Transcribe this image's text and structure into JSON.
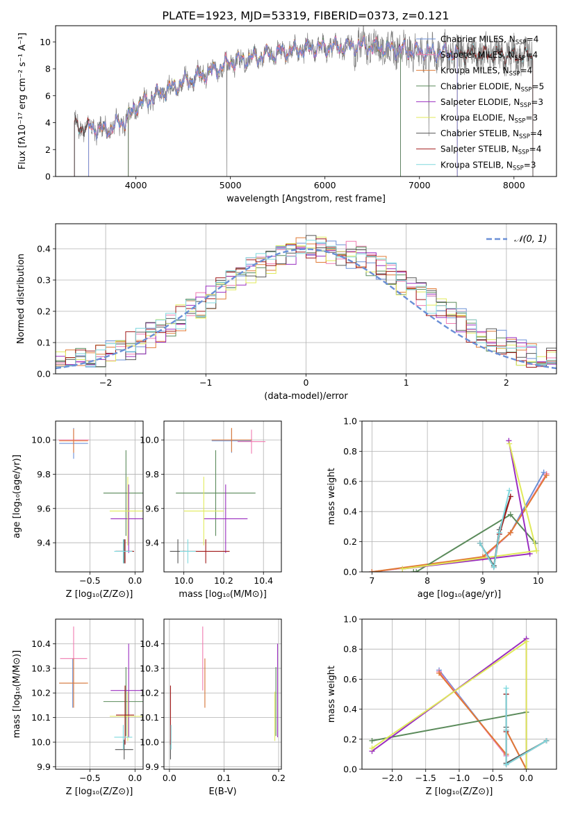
{
  "figure": {
    "title": "PLATE=1923, MJD=53319, FIBERID=0373, z=0.121"
  },
  "colors": {
    "ChabMILES": "#6a8fd6",
    "SalpMILES": "#f07ab0",
    "KroupaMILES": "#e07a35",
    "ChabELODIE": "#5a8a5a",
    "SalpELODIE": "#9a2ec0",
    "KroupaELODIE": "#e0ea5a",
    "ChabSTELIB": "#555555",
    "SalpSTELIB": "#a01818",
    "KroupaSTELIB": "#7ed8de",
    "data": "#808080"
  },
  "legend_spectrum": [
    {
      "key": "ChabMILES",
      "label": "Chabrier MILES, N",
      "sub": "SSP",
      "tail": "=4"
    },
    {
      "key": "SalpMILES",
      "label": "Salpeter MILES, N",
      "sub": "SSP",
      "tail": "=4"
    },
    {
      "key": "KroupaMILES",
      "label": "Kroupa MILES, N",
      "sub": "SSP",
      "tail": "=4"
    },
    {
      "key": "ChabELODIE",
      "label": "Chabrier ELODIE, N",
      "sub": "SSP",
      "tail": "=5"
    },
    {
      "key": "SalpELODIE",
      "label": "Salpeter ELODIE, N",
      "sub": "SSP",
      "tail": "=3"
    },
    {
      "key": "KroupaELODIE",
      "label": "Kroupa ELODIE, N",
      "sub": "SSP",
      "tail": "=3"
    },
    {
      "key": "ChabSTELIB",
      "label": "Chabrier STELIB, N",
      "sub": "SSP",
      "tail": "=4"
    },
    {
      "key": "SalpSTELIB",
      "label": "Salpeter STELIB, N",
      "sub": "SSP",
      "tail": "=4"
    },
    {
      "key": "KroupaSTELIB",
      "label": "Kroupa STELIB, N",
      "sub": "SSP",
      "tail": "=3"
    }
  ],
  "chart_data": [
    {
      "id": "spectrum",
      "type": "line",
      "xlabel": "wavelength [Angstrom, rest frame]",
      "ylabel": "Flux [fλ10⁻¹⁷ erg cm⁻² s⁻¹ A⁻¹]",
      "xlim": [
        3150,
        8450
      ],
      "ylim": [
        0,
        11.2
      ],
      "xticks": [
        4000,
        5000,
        6000,
        7000,
        8000
      ],
      "yticks": [
        0,
        2,
        4,
        6,
        8,
        10
      ],
      "continuum": [
        [
          3350,
          3.8
        ],
        [
          3500,
          3.6
        ],
        [
          3700,
          3.5
        ],
        [
          3900,
          4.2
        ],
        [
          4000,
          5.2
        ],
        [
          4200,
          6.0
        ],
        [
          4500,
          7.0
        ],
        [
          4800,
          7.8
        ],
        [
          5000,
          8.5
        ],
        [
          5300,
          8.9
        ],
        [
          5600,
          9.3
        ],
        [
          6000,
          9.6
        ],
        [
          6400,
          9.7
        ],
        [
          6800,
          9.4
        ],
        [
          7200,
          9.2
        ],
        [
          7600,
          9.1
        ],
        [
          8000,
          9.0
        ],
        [
          8200,
          8.9
        ]
      ],
      "model_extent": {
        "ChabMILES": [
          3500,
          7400
        ],
        "SalpMILES": [
          3500,
          7400
        ],
        "KroupaMILES": [
          3500,
          7400
        ],
        "ChabELODIE": [
          3920,
          6800
        ],
        "SalpELODIE": [
          3920,
          6800
        ],
        "KroupaELODIE": [
          3920,
          6800
        ],
        "ChabSTELIB": [
          3350,
          8200
        ],
        "SalpSTELIB": [
          3350,
          8200
        ],
        "KroupaSTELIB": [
          3350,
          8200
        ]
      }
    },
    {
      "id": "residuals",
      "type": "step",
      "xlabel": "(data-model)/error",
      "ylabel": "Normed distribution",
      "xlim": [
        -2.5,
        2.5
      ],
      "ylim": [
        0,
        0.48
      ],
      "xticks": [
        -2,
        -1,
        0,
        1,
        2
      ],
      "yticks": [
        0.0,
        0.1,
        0.2,
        0.3,
        0.4
      ],
      "legend": "𝒩(0, 1)",
      "gaussian": {
        "mean": 0,
        "sigma": 1
      }
    },
    {
      "id": "age_vs_Z",
      "type": "errorbar",
      "xlabel": "Z [log₁₀(Z/Z⊙)]",
      "ylabel": "age  [log₁₀(age/yr)]",
      "xlim": [
        -0.88,
        0.09
      ],
      "ylim": [
        9.23,
        10.11
      ],
      "xticks": [
        -0.5,
        0.0
      ],
      "yticks": [
        9.4,
        9.6,
        9.8,
        10.0
      ],
      "points": [
        {
          "key": "ChabMILES",
          "x": -0.68,
          "xerr": 0.16,
          "y": 9.98,
          "yerr": 0.09
        },
        {
          "key": "SalpMILES",
          "x": -0.68,
          "xerr": 0.17,
          "y": 10.0,
          "yerr": 0.06
        },
        {
          "key": "KroupaMILES",
          "x": -0.68,
          "xerr": 0.16,
          "y": 9.995,
          "yerr": 0.07
        },
        {
          "key": "ChabELODIE",
          "x": -0.1,
          "xerr": 0.25,
          "y": 9.69,
          "yerr": 0.25
        },
        {
          "key": "SalpELODIE",
          "x": -0.07,
          "xerr": 0.2,
          "y": 9.54,
          "yerr": 0.2
        },
        {
          "key": "KroupaELODIE",
          "x": -0.08,
          "xerr": 0.2,
          "y": 9.585,
          "yerr": 0.2
        },
        {
          "key": "ChabSTELIB",
          "x": -0.12,
          "xerr": 0.1,
          "y": 9.35,
          "yerr": 0.07
        },
        {
          "key": "SalpSTELIB",
          "x": -0.11,
          "xerr": 0.1,
          "y": 9.35,
          "yerr": 0.07
        },
        {
          "key": "KroupaSTELIB",
          "x": -0.13,
          "xerr": 0.1,
          "y": 9.35,
          "yerr": 0.07
        }
      ]
    },
    {
      "id": "age_vs_mass",
      "type": "errorbar",
      "xlabel": "mass [log₁₀(M/M⊙)]",
      "ylabel": "",
      "xlim": [
        9.9,
        10.49
      ],
      "ylim": [
        9.23,
        10.11
      ],
      "xticks": [
        10.0,
        10.2,
        10.4
      ],
      "yticks": [
        9.4,
        9.6,
        9.8,
        10.0
      ],
      "points": [
        {
          "key": "ChabMILES",
          "x": 10.24,
          "xerr": 0.1,
          "y": 9.995,
          "yerr": 0.07
        },
        {
          "key": "SalpMILES",
          "x": 10.34,
          "xerr": 0.07,
          "y": 9.99,
          "yerr": 0.07
        },
        {
          "key": "KroupaMILES",
          "x": 10.24,
          "xerr": 0.1,
          "y": 10.0,
          "yerr": 0.07
        },
        {
          "key": "ChabELODIE",
          "x": 10.16,
          "xerr": 0.2,
          "y": 9.69,
          "yerr": 0.25
        },
        {
          "key": "SalpELODIE",
          "x": 10.21,
          "xerr": 0.11,
          "y": 9.54,
          "yerr": 0.2
        },
        {
          "key": "KroupaELODIE",
          "x": 10.1,
          "xerr": 0.1,
          "y": 9.585,
          "yerr": 0.2
        },
        {
          "key": "ChabSTELIB",
          "x": 9.97,
          "xerr": 0.04,
          "y": 9.35,
          "yerr": 0.07
        },
        {
          "key": "SalpSTELIB",
          "x": 10.11,
          "xerr": 0.12,
          "y": 9.35,
          "yerr": 0.07
        },
        {
          "key": "KroupaSTELIB",
          "x": 10.02,
          "xerr": 0.04,
          "y": 9.35,
          "yerr": 0.07
        }
      ]
    },
    {
      "id": "weight_vs_age",
      "type": "line",
      "xlabel": "age  [log₁₀(age/yr)]",
      "ylabel": "mass weight",
      "xlim": [
        6.82,
        10.33
      ],
      "ylim": [
        0,
        1.0
      ],
      "xticks": [
        7,
        8,
        9,
        10
      ],
      "yticks": [
        0.0,
        0.2,
        0.4,
        0.6,
        0.8,
        1.0
      ],
      "series": [
        {
          "key": "ChabMILES",
          "x": [
            10.1,
            9.5,
            9.0,
            7.0
          ],
          "y": [
            0.66,
            0.26,
            0.09,
            0.0
          ]
        },
        {
          "key": "SalpMILES",
          "x": [
            10.15,
            9.5,
            9.0,
            7.0
          ],
          "y": [
            0.65,
            0.26,
            0.09,
            0.0
          ]
        },
        {
          "key": "KroupaMILES",
          "x": [
            10.15,
            9.5,
            9.0,
            7.0
          ],
          "y": [
            0.64,
            0.26,
            0.1,
            0.0
          ]
        },
        {
          "key": "ChabELODIE",
          "x": [
            9.95,
            9.5,
            7.8,
            7.75,
            7.75
          ],
          "y": [
            0.19,
            0.38,
            0.0,
            0.0,
            0.0
          ]
        },
        {
          "key": "SalpELODIE",
          "x": [
            9.47,
            9.85,
            7.55
          ],
          "y": [
            0.87,
            0.12,
            0.02
          ]
        },
        {
          "key": "KroupaELODIE",
          "x": [
            9.48,
            9.97,
            7.55
          ],
          "y": [
            0.85,
            0.14,
            0.02
          ]
        },
        {
          "key": "ChabSTELIB",
          "x": [
            9.5,
            9.3,
            9.2,
            8.95
          ],
          "y": [
            0.5,
            0.28,
            0.04,
            0.19
          ]
        },
        {
          "key": "SalpSTELIB",
          "x": [
            9.5,
            9.3,
            9.2,
            8.95
          ],
          "y": [
            0.5,
            0.25,
            0.03,
            0.19
          ]
        },
        {
          "key": "KroupaSTELIB",
          "x": [
            9.48,
            9.3,
            9.2,
            8.95
          ],
          "y": [
            0.54,
            0.26,
            0.03,
            0.19
          ]
        }
      ]
    },
    {
      "id": "mass_vs_Z",
      "type": "errorbar",
      "xlabel": "Z [log₁₀(Z/Z⊙)]",
      "ylabel": "mass [log₁₀(M/M⊙)]",
      "xlim": [
        -0.88,
        0.09
      ],
      "ylim": [
        9.89,
        10.5
      ],
      "xticks": [
        -0.5,
        0.0
      ],
      "yticks": [
        9.9,
        10.0,
        10.1,
        10.2,
        10.3,
        10.4
      ],
      "points": [
        {
          "key": "ChabMILES",
          "x": -0.69,
          "xerr": 0.15,
          "y": 10.24,
          "yerr": 0.1
        },
        {
          "key": "SalpMILES",
          "x": -0.68,
          "xerr": 0.15,
          "y": 10.34,
          "yerr": 0.13
        },
        {
          "key": "KroupaMILES",
          "x": -0.68,
          "xerr": 0.16,
          "y": 10.24,
          "yerr": 0.1
        },
        {
          "key": "ChabELODIE",
          "x": -0.1,
          "xerr": 0.25,
          "y": 10.165,
          "yerr": 0.14
        },
        {
          "key": "SalpELODIE",
          "x": -0.07,
          "xerr": 0.2,
          "y": 10.21,
          "yerr": 0.19
        },
        {
          "key": "KroupaELODIE",
          "x": -0.08,
          "xerr": 0.2,
          "y": 10.105,
          "yerr": 0.1
        },
        {
          "key": "ChabSTELIB",
          "x": -0.12,
          "xerr": 0.1,
          "y": 9.97,
          "yerr": 0.04
        },
        {
          "key": "SalpSTELIB",
          "x": -0.11,
          "xerr": 0.1,
          "y": 10.11,
          "yerr": 0.12
        },
        {
          "key": "KroupaSTELIB",
          "x": -0.13,
          "xerr": 0.1,
          "y": 10.02,
          "yerr": 0.05
        }
      ]
    },
    {
      "id": "mass_vs_ebv",
      "type": "errorbar",
      "xlabel": "E(B-V)",
      "ylabel": "",
      "xlim": [
        -0.01,
        0.205
      ],
      "ylim": [
        9.89,
        10.5
      ],
      "xticks": [
        0.0,
        0.1,
        0.2
      ],
      "yticks": [
        9.9,
        10.0,
        10.1,
        10.2,
        10.3,
        10.4
      ],
      "points": [
        {
          "key": "ChabMILES",
          "x": 0.065,
          "xerr": 0.0,
          "y": 10.24,
          "yerr": 0.1
        },
        {
          "key": "SalpMILES",
          "x": 0.061,
          "xerr": 0.0,
          "y": 10.34,
          "yerr": 0.13
        },
        {
          "key": "KroupaMILES",
          "x": 0.065,
          "xerr": 0.0,
          "y": 10.24,
          "yerr": 0.1
        },
        {
          "key": "ChabELODIE",
          "x": 0.195,
          "xerr": 0.0,
          "y": 10.165,
          "yerr": 0.14
        },
        {
          "key": "SalpELODIE",
          "x": 0.198,
          "xerr": 0.0,
          "y": 10.21,
          "yerr": 0.19
        },
        {
          "key": "KroupaELODIE",
          "x": 0.193,
          "xerr": 0.0,
          "y": 10.105,
          "yerr": 0.1
        },
        {
          "key": "ChabSTELIB",
          "x": 0.002,
          "xerr": 0.0,
          "y": 9.97,
          "yerr": 0.04
        },
        {
          "key": "SalpSTELIB",
          "x": 0.002,
          "xerr": 0.0,
          "y": 10.11,
          "yerr": 0.12
        },
        {
          "key": "KroupaSTELIB",
          "x": 0.003,
          "xerr": 0.0,
          "y": 10.02,
          "yerr": 0.05
        }
      ]
    },
    {
      "id": "weight_vs_Z",
      "type": "line",
      "xlabel": "Z [log₁₀(Z/Z⊙)]",
      "ylabel": "mass weight",
      "xlim": [
        -2.45,
        0.45
      ],
      "ylim": [
        0,
        1.0
      ],
      "xticks": [
        -2.0,
        -1.5,
        -1.0,
        -0.5,
        0.0
      ],
      "yticks": [
        0.0,
        0.2,
        0.4,
        0.6,
        0.8,
        1.0
      ],
      "series": [
        {
          "key": "ChabMILES",
          "x": [
            -1.3,
            -0.3,
            -0.3,
            0.0
          ],
          "y": [
            0.66,
            0.09,
            0.26,
            0.0
          ]
        },
        {
          "key": "SalpMILES",
          "x": [
            -1.3,
            -0.3,
            -0.3,
            0.0
          ],
          "y": [
            0.65,
            0.09,
            0.26,
            0.0
          ]
        },
        {
          "key": "KroupaMILES",
          "x": [
            -1.3,
            -0.3,
            -0.3,
            0.0
          ],
          "y": [
            0.64,
            0.1,
            0.26,
            0.0
          ]
        },
        {
          "key": "ChabELODIE",
          "x": [
            -2.3,
            0.0,
            0.0
          ],
          "y": [
            0.19,
            0.38,
            0.0
          ]
        },
        {
          "key": "SalpELODIE",
          "x": [
            -2.3,
            0.0,
            0.0
          ],
          "y": [
            0.12,
            0.87,
            0.0
          ]
        },
        {
          "key": "KroupaELODIE",
          "x": [
            -2.3,
            0.0,
            0.0
          ],
          "y": [
            0.14,
            0.85,
            0.0
          ]
        },
        {
          "key": "ChabSTELIB",
          "x": [
            -0.3,
            -0.3,
            -0.3,
            0.3
          ],
          "y": [
            0.5,
            0.28,
            0.04,
            0.19
          ]
        },
        {
          "key": "SalpSTELIB",
          "x": [
            -0.3,
            -0.3,
            -0.3,
            0.3
          ],
          "y": [
            0.5,
            0.25,
            0.03,
            0.19
          ]
        },
        {
          "key": "KroupaSTELIB",
          "x": [
            -0.3,
            -0.3,
            -0.3,
            0.3
          ],
          "y": [
            0.54,
            0.26,
            0.03,
            0.19
          ]
        }
      ]
    }
  ]
}
